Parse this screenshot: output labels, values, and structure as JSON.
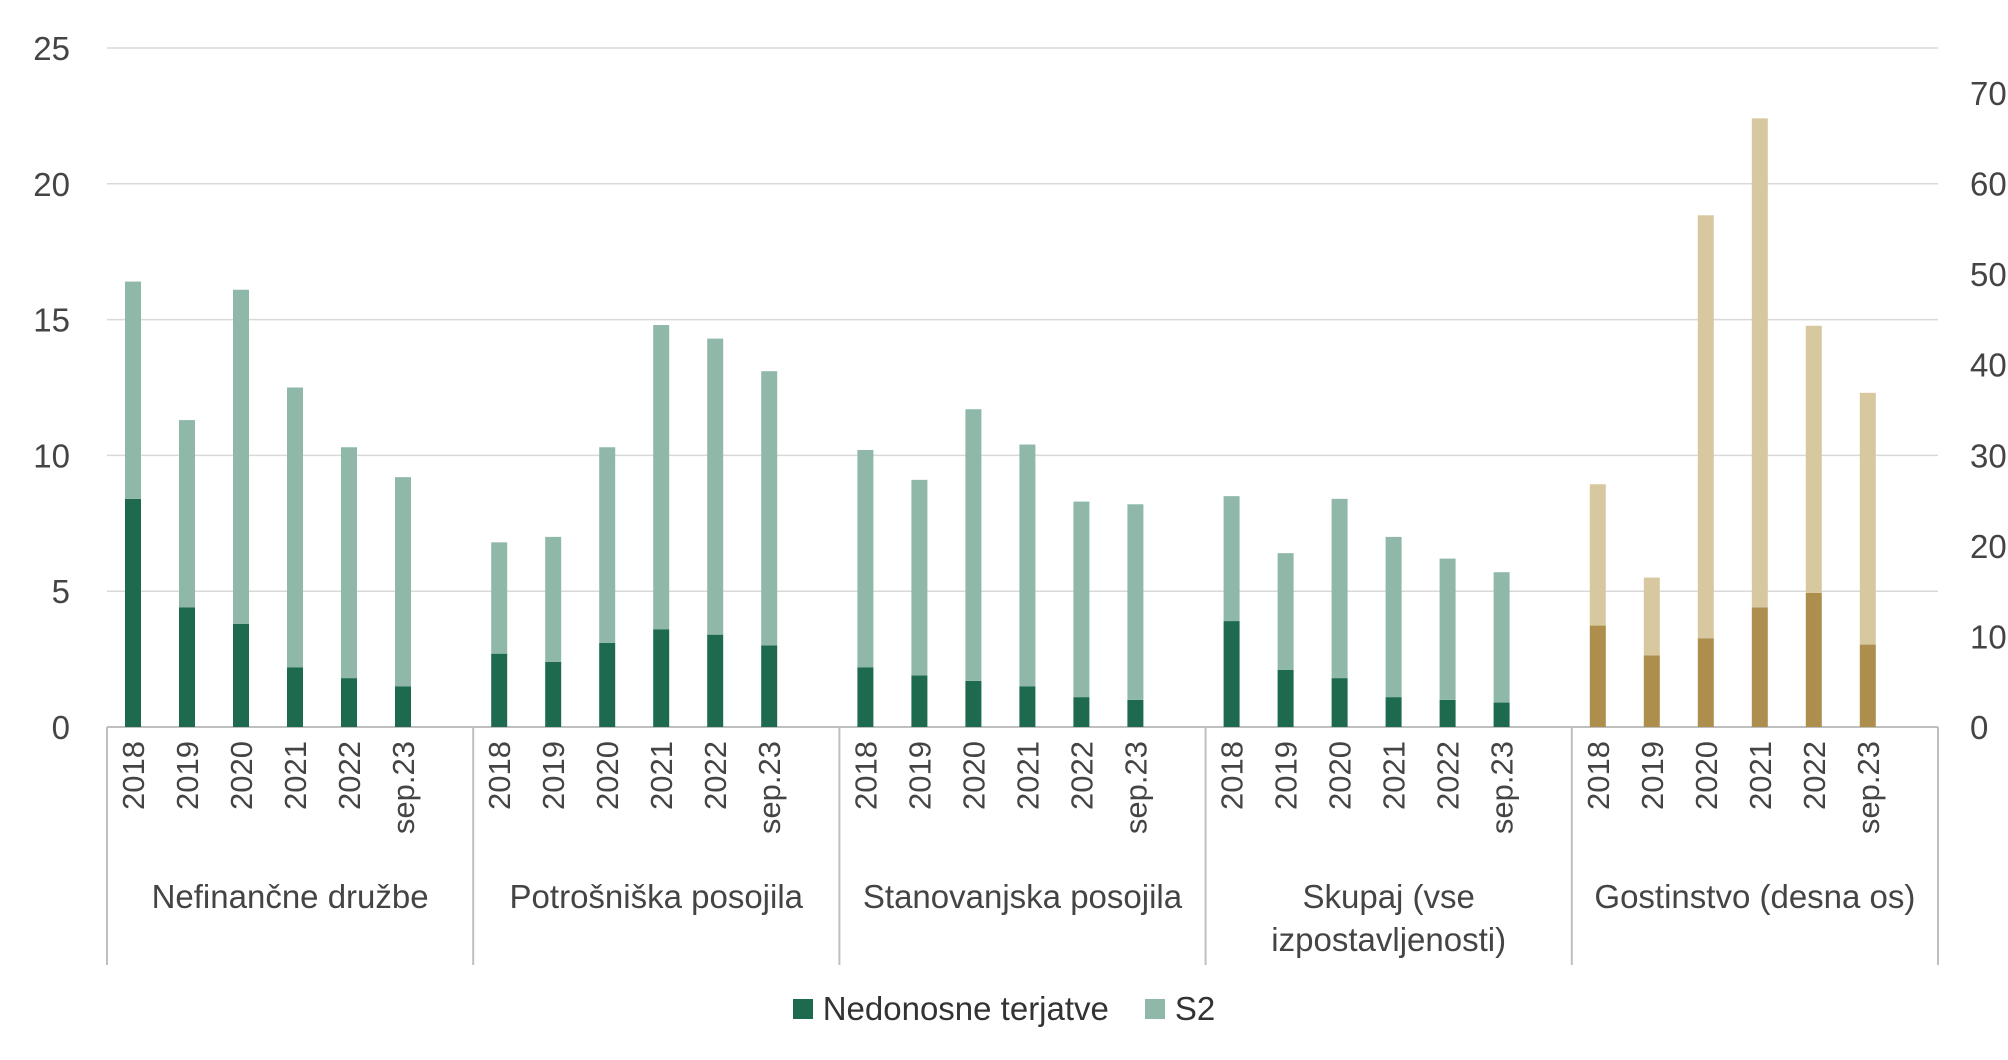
{
  "chart_data": {
    "type": "bar",
    "stacked": true,
    "groups": [
      {
        "label": "Nefinančne družbe",
        "axis": "left",
        "categories": [
          "2018",
          "2019",
          "2020",
          "2021",
          "2022",
          "sep.23"
        ],
        "series": [
          {
            "name": "Nedonosne terjatve",
            "values": [
              8.4,
              4.4,
              3.8,
              2.2,
              1.8,
              1.5
            ]
          },
          {
            "name": "S2",
            "values": [
              8.0,
              6.9,
              12.3,
              10.3,
              8.5,
              7.7
            ]
          }
        ]
      },
      {
        "label": "Potrošniška posojila",
        "axis": "left",
        "categories": [
          "2018",
          "2019",
          "2020",
          "2021",
          "2022",
          "sep.23"
        ],
        "series": [
          {
            "name": "Nedonosne terjatve",
            "values": [
              2.7,
              2.4,
              3.1,
              3.6,
              3.4,
              3.0
            ]
          },
          {
            "name": "S2",
            "values": [
              4.1,
              4.6,
              7.2,
              11.2,
              10.9,
              10.1
            ]
          }
        ]
      },
      {
        "label": "Stanovanjska posojila",
        "axis": "left",
        "categories": [
          "2018",
          "2019",
          "2020",
          "2021",
          "2022",
          "sep.23"
        ],
        "series": [
          {
            "name": "Nedonosne terjatve",
            "values": [
              2.2,
              1.9,
              1.7,
              1.5,
              1.1,
              1.0
            ]
          },
          {
            "name": "S2",
            "values": [
              8.0,
              7.2,
              10.0,
              8.9,
              7.2,
              7.2
            ]
          }
        ]
      },
      {
        "label": "Skupaj (vse izpostavljenosti)",
        "axis": "left",
        "categories": [
          "2018",
          "2019",
          "2020",
          "2021",
          "2022",
          "sep.23"
        ],
        "series": [
          {
            "name": "Nedonosne terjatve",
            "values": [
              3.9,
              2.1,
              1.8,
              1.1,
              1.0,
              0.9
            ]
          },
          {
            "name": "S2",
            "values": [
              4.6,
              4.3,
              6.6,
              5.9,
              5.2,
              4.8
            ]
          }
        ]
      },
      {
        "label": "Gostinstvo (desna os)",
        "axis": "right",
        "categories": [
          "2018",
          "2019",
          "2020",
          "2021",
          "2022",
          "sep.23"
        ],
        "series": [
          {
            "name": "Nedonosne terjatve",
            "values": [
              11.2,
              7.9,
              9.8,
              13.2,
              14.8,
              9.1
            ]
          },
          {
            "name": "S2",
            "values": [
              15.6,
              8.6,
              46.7,
              54.0,
              29.5,
              27.8
            ]
          }
        ]
      }
    ],
    "y_left": {
      "min": 0,
      "max": 25,
      "ticks": [
        "0",
        "5",
        "10",
        "15",
        "20",
        "25"
      ]
    },
    "y_right": {
      "min": 0,
      "max": 70,
      "ticks": [
        "0",
        "10",
        "20",
        "30",
        "40",
        "50",
        "60",
        "70"
      ]
    },
    "legend": {
      "position": "bottom",
      "items": [
        {
          "name": "Nedonosne terjatve",
          "color": "#1e6a4f"
        },
        {
          "name": "S2",
          "color": "#8fb8a8"
        }
      ]
    },
    "colors": {
      "npl": "#1e6a4f",
      "s2": "#8fb8a8",
      "npl_right": "#ad8e4c",
      "s2_right": "#d8c8a0",
      "gridline": "#d9d9d9",
      "axis": "#bfbfbf"
    },
    "grid": true
  }
}
